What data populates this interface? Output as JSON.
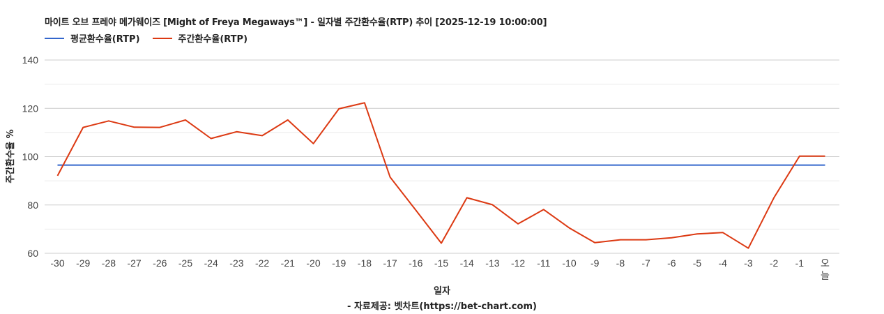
{
  "title": "마이트 오브 프레야 메가웨이즈 [Might of Freya Megaways™] - 일자별 주간환수율(RTP) 추이 [2025-12-19 10:00:00]",
  "legend": [
    {
      "label": "평균환수율(RTP)",
      "color": "#3366cc"
    },
    {
      "label": "주간환수율(RTP)",
      "color": "#dc3912"
    }
  ],
  "xlabel": "일자",
  "source": "- 자료제공: 벳차트(https://bet-chart.com)",
  "chart_data": {
    "type": "line",
    "title": "마이트 오브 프레야 메가웨이즈 [Might of Freya Megaways™] - 일자별 주간환수율(RTP) 추이 [2025-12-19 10:00:00]",
    "xlabel": "일자",
    "ylabel": "주간환수율 %",
    "ylim": [
      60,
      140
    ],
    "yticks": [
      60,
      80,
      100,
      120,
      140
    ],
    "grid": true,
    "legend_position": "top-left",
    "categories": [
      "-30",
      "-29",
      "-28",
      "-27",
      "-26",
      "-25",
      "-24",
      "-23",
      "-22",
      "-21",
      "-20",
      "-19",
      "-18",
      "-17",
      "-16",
      "-15",
      "-14",
      "-13",
      "-12",
      "-11",
      "-10",
      "-9",
      "-8",
      "-7",
      "-6",
      "-5",
      "-4",
      "-3",
      "-2",
      "-1",
      "오늘"
    ],
    "series": [
      {
        "name": "평균환수율(RTP)",
        "color": "#3366cc",
        "values": [
          96.5,
          96.5,
          96.5,
          96.5,
          96.5,
          96.5,
          96.5,
          96.5,
          96.5,
          96.5,
          96.5,
          96.5,
          96.5,
          96.5,
          96.5,
          96.5,
          96.5,
          96.5,
          96.5,
          96.5,
          96.5,
          96.5,
          96.5,
          96.5,
          96.5,
          96.5,
          96.5,
          96.5,
          96.5,
          96.5,
          96.5
        ]
      },
      {
        "name": "주간환수율(RTP)",
        "color": "#dc3912",
        "values": [
          92.1,
          112.1,
          114.8,
          112.2,
          112.1,
          115.2,
          107.5,
          110.3,
          108.7,
          115.2,
          105.4,
          119.8,
          122.3,
          91.5,
          77.9,
          64.2,
          83.0,
          80.1,
          72.2,
          78.1,
          70.5,
          64.4,
          65.6,
          65.6,
          66.4,
          68.0,
          68.6,
          62.1,
          83.0,
          100.2,
          100.2
        ]
      }
    ]
  }
}
